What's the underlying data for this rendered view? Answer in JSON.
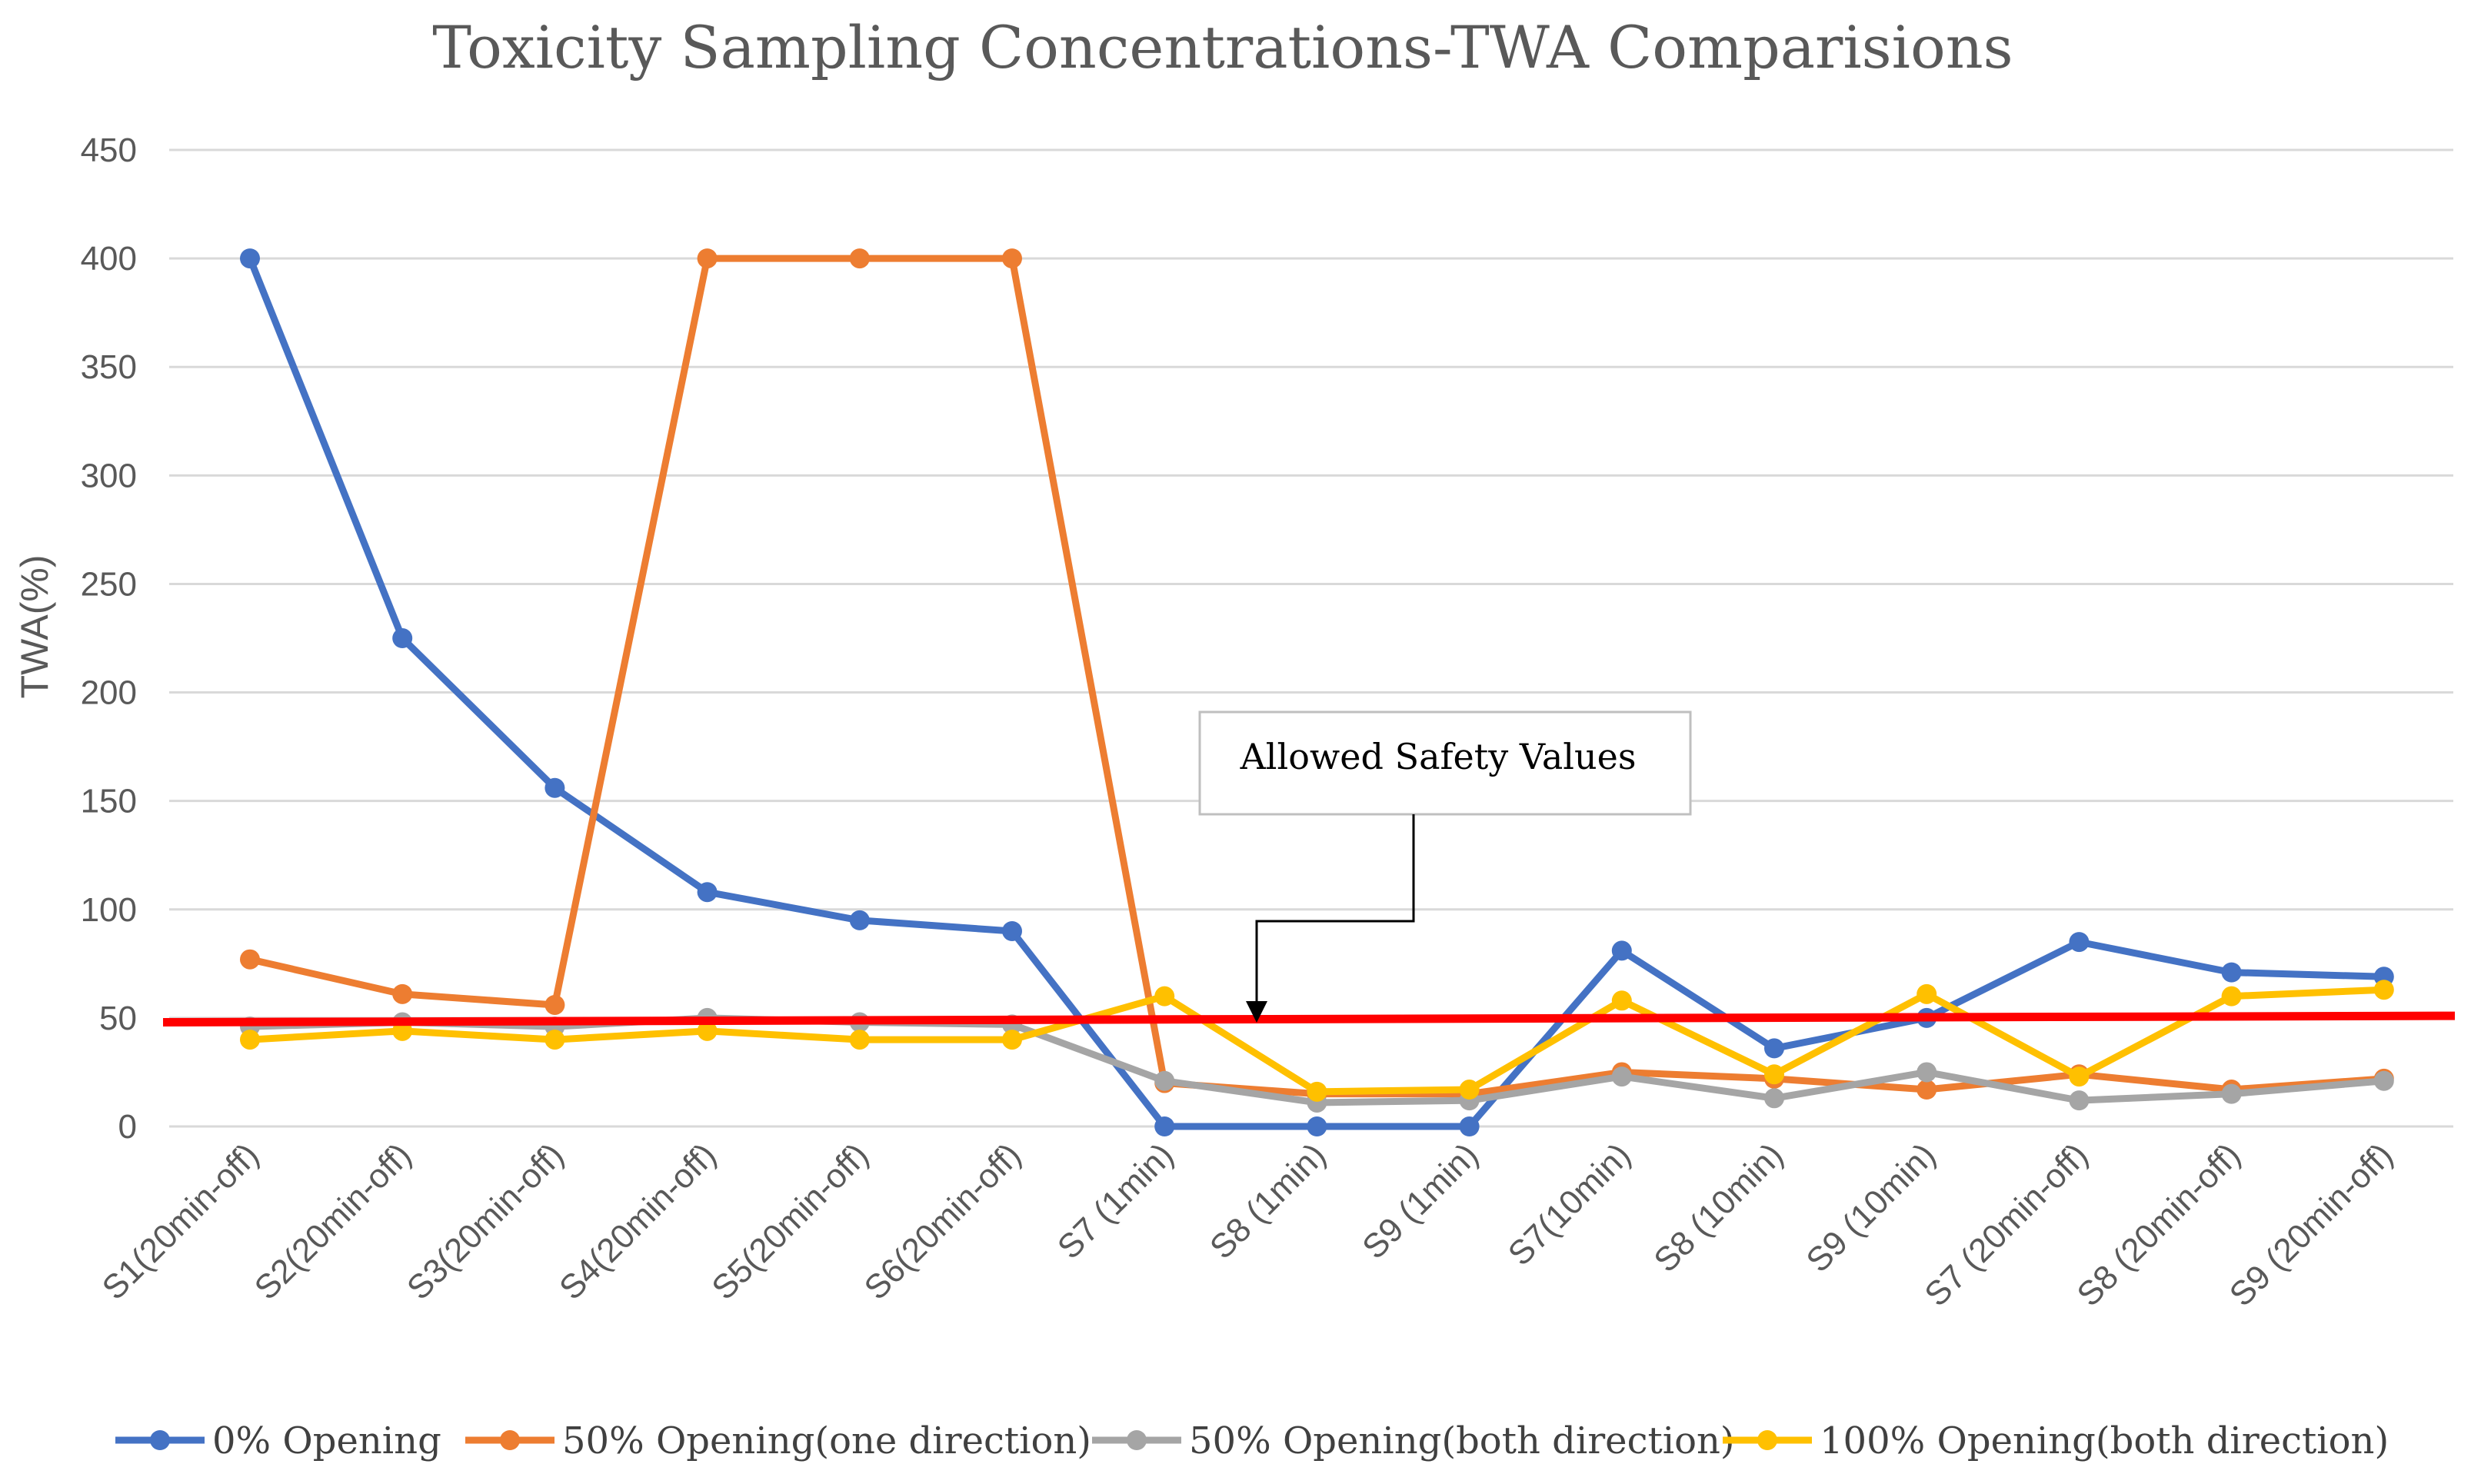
{
  "chart_data": {
    "type": "line",
    "title": "Toxicity Sampling Concentrations-TWA Comparisions",
    "xlabel": "",
    "ylabel": "TWA(%)",
    "ylim": [
      0,
      450
    ],
    "yticks": [
      "0",
      "50",
      "100",
      "150",
      "200",
      "250",
      "300",
      "350",
      "400",
      "450"
    ],
    "grid": true,
    "legend": "bottom",
    "categories": [
      "S1(20min-off)",
      "S2(20min-off)",
      "S3(20min-off)",
      "S4(20min-off)",
      "S5(20min-off)",
      "S6(20min-off)",
      "S7 (1min)",
      "S8 (1min)",
      "S9 (1min)",
      "S7(10min)",
      "S8 (10min)",
      "S9 (10min)",
      "S7 (20min-off)",
      "S8 (20min-off)",
      "S9 (20min-off)"
    ],
    "series": [
      {
        "name": "0% Opening",
        "color": "#4472C4",
        "values": [
          400,
          225,
          156,
          108,
          95,
          90,
          0,
          0,
          0,
          81,
          36,
          50,
          85,
          71,
          69
        ]
      },
      {
        "name": "50% Opening(one direction)",
        "color": "#ED7D31",
        "values": [
          77,
          61,
          56,
          400,
          400,
          400,
          20,
          15,
          15,
          25,
          22,
          17,
          24,
          17,
          22
        ]
      },
      {
        "name": "50% Opening(both direction)",
        "color": "#A5A5A5",
        "values": [
          46,
          48,
          46,
          50,
          48,
          47,
          21,
          11,
          12,
          23,
          13,
          25,
          12,
          15,
          21
        ]
      },
      {
        "name": "100% Opening(both direction)",
        "color": "#FFC000",
        "values": [
          40,
          44,
          40,
          44,
          40,
          40,
          60,
          16,
          17,
          58,
          24,
          61,
          23,
          60,
          63
        ]
      }
    ],
    "threshold": {
      "start_value": 48,
      "end_value": 51,
      "color": "#FF0000"
    },
    "annotation": {
      "text": "Allowed Safety Values",
      "arrow_category": "S8 (1min)"
    }
  }
}
